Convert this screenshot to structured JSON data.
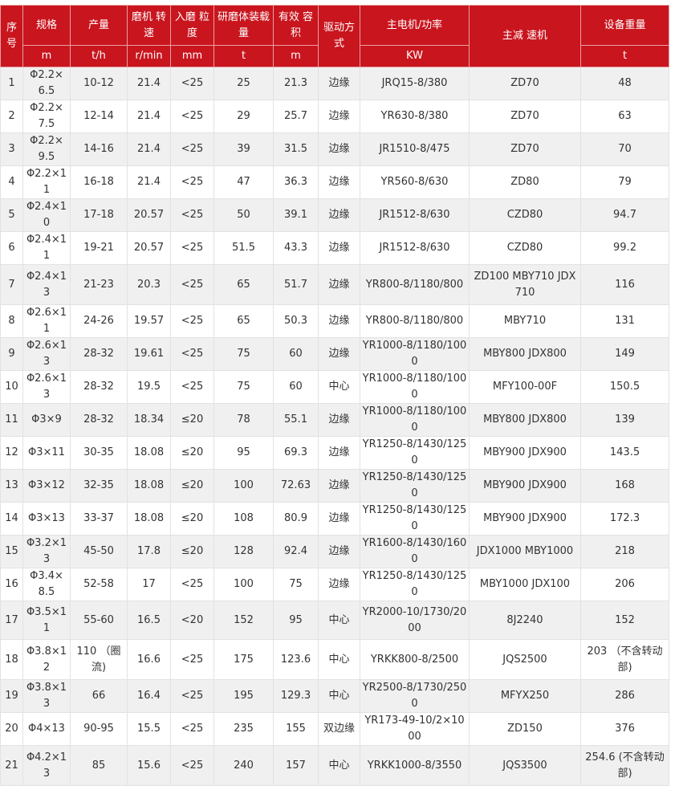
{
  "table": {
    "header": [
      "序号",
      "规格",
      "产量",
      "磨机 转速",
      "入磨 粒度",
      "研磨体装载量",
      "有效 容积",
      "驱动方式",
      "主电机/功率",
      "主减 速机",
      "设备重量"
    ],
    "units": [
      "m",
      "t/h",
      "r/min",
      "mm",
      "t",
      "m",
      "KW",
      "t"
    ],
    "rows": [
      [
        "1",
        "Φ2.2×6.5",
        "10-12",
        "21.4",
        "<25",
        "25",
        "21.3",
        "边缘",
        "JRQ15-8/380",
        "ZD70",
        "48"
      ],
      [
        "2",
        "Φ2.2×7.5",
        "12-14",
        "21.4",
        "<25",
        "29",
        "25.7",
        "边缘",
        "YR630-8/380",
        "ZD70",
        "63"
      ],
      [
        "3",
        "Φ2.2×9.5",
        "14-16",
        "21.4",
        "<25",
        "39",
        "31.5",
        "边缘",
        "JR1510-8/475",
        "ZD70",
        "70"
      ],
      [
        "4",
        "Φ2.2×11",
        "16-18",
        "21.4",
        "<25",
        "47",
        "36.3",
        "边缘",
        "YR560-8/630",
        "ZD80",
        "79"
      ],
      [
        "5",
        "Φ2.4×10",
        "17-18",
        "20.57",
        "<25",
        "50",
        "39.1",
        "边缘",
        "JR1512-8/630",
        "CZD80",
        "94.7"
      ],
      [
        "6",
        "Φ2.4×11",
        "19-21",
        "20.57",
        "<25",
        "51.5",
        "43.3",
        "边缘",
        "JR1512-8/630",
        "CZD80",
        "99.2"
      ],
      [
        "7",
        "Φ2.4×13",
        "21-23",
        "20.3",
        "<25",
        "65",
        "51.7",
        "边缘",
        "YR800-8/1180/800",
        "ZD100 MBY710 JDX710",
        "116"
      ],
      [
        "8",
        "Φ2.6×11",
        "24-26",
        "19.57",
        "<25",
        "65",
        "50.3",
        "边缘",
        "YR800-8/1180/800",
        "MBY710",
        "131"
      ],
      [
        "9",
        "Φ2.6×13",
        "28-32",
        "19.61",
        "<25",
        "75",
        "60",
        "边缘",
        "YR1000-8/1180/1000",
        "MBY800 JDX800",
        "149"
      ],
      [
        "10",
        "Φ2.6×13",
        "28-32",
        "19.5",
        "<25",
        "75",
        "60",
        "中心",
        "YR1000-8/1180/1000",
        "MFY100-00F",
        "150.5"
      ],
      [
        "11",
        "Φ3×9",
        "28-32",
        "18.34",
        "≤20",
        "78",
        "55.1",
        "边缘",
        "YR1000-8/1180/1000",
        "MBY800 JDX800",
        "139"
      ],
      [
        "12",
        "Φ3×11",
        "30-35",
        "18.08",
        "≤20",
        "95",
        "69.3",
        "边缘",
        "YR1250-8/1430/1250",
        "MBY900 JDX900",
        "143.5"
      ],
      [
        "13",
        "Φ3×12",
        "32-35",
        "18.08",
        "≤20",
        "100",
        "72.63",
        "边缘",
        "YR1250-8/1430/1250",
        "MBY900 JDX900",
        "168"
      ],
      [
        "14",
        "Φ3×13",
        "33-37",
        "18.08",
        "≤20",
        "108",
        "80.9",
        "边缘",
        "YR1250-8/1430/1250",
        "MBY900 JDX900",
        "172.3"
      ],
      [
        "15",
        "Φ3.2×13",
        "45-50",
        "17.8",
        "≤20",
        "128",
        "92.4",
        "边缘",
        "YR1600-8/1430/1600",
        "JDX1000 MBY1000",
        "218"
      ],
      [
        "16",
        "Φ3.4×8.5",
        "52-58",
        "17",
        "<25",
        "100",
        "75",
        "边缘",
        "YR1250-8/1430/1250",
        "MBY1000 JDX100",
        "206"
      ],
      [
        "17",
        "Φ3.5×11",
        "55-60",
        "16.5",
        "<20",
        "152",
        "95",
        "中心",
        "YR2000-10/1730/2000",
        "8J2240",
        "152"
      ],
      [
        "18",
        "Φ3.8×12",
        "110 （圈流)",
        "16.6",
        "<25",
        "175",
        "123.6",
        "中心",
        "YRKK800-8/2500",
        "JQS2500",
        "203 （不含转动部)"
      ],
      [
        "19",
        "Φ3.8×13",
        "66",
        "16.4",
        "<25",
        "195",
        "129.3",
        "中心",
        "YR2500-8/1730/2500",
        "MFYX250",
        "286"
      ],
      [
        "20",
        "Φ4×13",
        "90-95",
        "15.5",
        "<25",
        "235",
        "155",
        "双边缘",
        "YR173-49-10/2×1000",
        "ZD150",
        "376"
      ],
      [
        "21",
        "Φ4.2×13",
        "85",
        "15.6",
        "<25",
        "240",
        "157",
        "中心",
        "YRKK1000-8/3550",
        "JQS3500",
        "254.6 (不含转动部)"
      ]
    ]
  }
}
